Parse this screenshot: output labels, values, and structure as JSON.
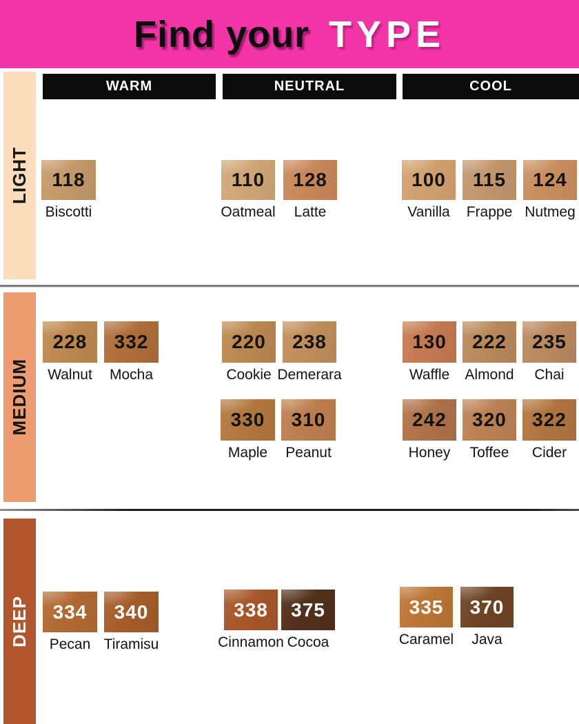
{
  "title": {
    "prefix": "Find your",
    "highlight": "TYPE"
  },
  "columns": [
    "WARM",
    "NEUTRAL",
    "COOL"
  ],
  "theme": {
    "header_bg": "#F335A8",
    "column_bar_bg": "#0B0B0B",
    "column_bar_text": "#FFFFFF",
    "divider_gray": "#7F7F7F",
    "divider_dark": "#1D1D1D"
  },
  "rows": [
    {
      "label": "LIGHT",
      "band_color": "#FBDCBD",
      "band_text_color": "#141414",
      "number_color": "#141414",
      "groups": [
        {
          "column": "warm",
          "sub": 1,
          "shades": [
            {
              "code": "118",
              "name": "Biscotti",
              "color": "#C49A6A"
            }
          ]
        },
        {
          "column": "neutral",
          "sub": 1,
          "shades": [
            {
              "code": "110",
              "name": "Oatmeal",
              "color": "#D0A877"
            },
            {
              "code": "128",
              "name": "Latte",
              "color": "#C8885A"
            }
          ]
        },
        {
          "column": "cool",
          "sub": 1,
          "shades": [
            {
              "code": "100",
              "name": "Vanilla",
              "color": "#D2A170"
            },
            {
              "code": "115",
              "name": "Frappe",
              "color": "#C3976F"
            },
            {
              "code": "124",
              "name": "Nutmeg",
              "color": "#C98F60"
            }
          ]
        }
      ]
    },
    {
      "label": "MEDIUM",
      "band_color": "#EC9C70",
      "band_text_color": "#141414",
      "number_color": "#141414",
      "groups": [
        {
          "column": "warm",
          "sub": 1,
          "shades": [
            {
              "code": "228",
              "name": "Walnut",
              "color": "#BE8951"
            },
            {
              "code": "332",
              "name": "Mocha",
              "color": "#B06E3B"
            }
          ]
        },
        {
          "column": "neutral",
          "sub": 1,
          "shades": [
            {
              "code": "220",
              "name": "Cookie",
              "color": "#BC8951"
            },
            {
              "code": "238",
              "name": "Demerara",
              "color": "#C08F5C"
            }
          ]
        },
        {
          "column": "cool",
          "sub": 1,
          "shades": [
            {
              "code": "130",
              "name": "Waffle",
              "color": "#C67A52"
            },
            {
              "code": "222",
              "name": "Almond",
              "color": "#B98A5C"
            },
            {
              "code": "235",
              "name": "Chai",
              "color": "#BB8A60"
            }
          ]
        },
        {
          "column": "neutral",
          "sub": 2,
          "shades": [
            {
              "code": "330",
              "name": "Maple",
              "color": "#B47840"
            },
            {
              "code": "310",
              "name": "Peanut",
              "color": "#BE7F4F"
            }
          ]
        },
        {
          "column": "cool",
          "sub": 2,
          "shades": [
            {
              "code": "242",
              "name": "Honey",
              "color": "#B0734A"
            },
            {
              "code": "320",
              "name": "Toffee",
              "color": "#BC8254"
            },
            {
              "code": "322",
              "name": "Cider",
              "color": "#B17641"
            }
          ]
        }
      ]
    },
    {
      "label": "DEEP",
      "band_color": "#B2572D",
      "band_text_color": "#FFFFFF",
      "number_color": "#FFFFFF",
      "groups": [
        {
          "column": "warm",
          "sub": 1,
          "shades": [
            {
              "code": "334",
              "name": "Pecan",
              "color": "#B26A33"
            },
            {
              "code": "340",
              "name": "Tiramisu",
              "color": "#A65D2A"
            }
          ]
        },
        {
          "column": "neutral",
          "sub": 1,
          "shades": [
            {
              "code": "338",
              "name": "Cinnamon",
              "color": "#A7572A"
            },
            {
              "code": "375",
              "name": "Cocoa",
              "color": "#52301B"
            }
          ]
        },
        {
          "column": "cool",
          "sub": 1,
          "shades": [
            {
              "code": "335",
              "name": "Caramel",
              "color": "#BD7636"
            },
            {
              "code": "370",
              "name": "Java",
              "color": "#6E4424"
            }
          ]
        }
      ]
    }
  ],
  "chart_data": {
    "type": "table",
    "title": "Find your TYPE",
    "row_groups": [
      "LIGHT",
      "MEDIUM",
      "DEEP"
    ],
    "column_groups": [
      "WARM",
      "NEUTRAL",
      "COOL"
    ],
    "entries": [
      {
        "depth": "LIGHT",
        "undertone": "WARM",
        "code": "118",
        "name": "Biscotti"
      },
      {
        "depth": "LIGHT",
        "undertone": "NEUTRAL",
        "code": "110",
        "name": "Oatmeal"
      },
      {
        "depth": "LIGHT",
        "undertone": "NEUTRAL",
        "code": "128",
        "name": "Latte"
      },
      {
        "depth": "LIGHT",
        "undertone": "COOL",
        "code": "100",
        "name": "Vanilla"
      },
      {
        "depth": "LIGHT",
        "undertone": "COOL",
        "code": "115",
        "name": "Frappe"
      },
      {
        "depth": "LIGHT",
        "undertone": "COOL",
        "code": "124",
        "name": "Nutmeg"
      },
      {
        "depth": "MEDIUM",
        "undertone": "WARM",
        "code": "228",
        "name": "Walnut"
      },
      {
        "depth": "MEDIUM",
        "undertone": "WARM",
        "code": "332",
        "name": "Mocha"
      },
      {
        "depth": "MEDIUM",
        "undertone": "NEUTRAL",
        "code": "220",
        "name": "Cookie"
      },
      {
        "depth": "MEDIUM",
        "undertone": "NEUTRAL",
        "code": "238",
        "name": "Demerara"
      },
      {
        "depth": "MEDIUM",
        "undertone": "NEUTRAL",
        "code": "330",
        "name": "Maple"
      },
      {
        "depth": "MEDIUM",
        "undertone": "NEUTRAL",
        "code": "310",
        "name": "Peanut"
      },
      {
        "depth": "MEDIUM",
        "undertone": "COOL",
        "code": "130",
        "name": "Waffle"
      },
      {
        "depth": "MEDIUM",
        "undertone": "COOL",
        "code": "222",
        "name": "Almond"
      },
      {
        "depth": "MEDIUM",
        "undertone": "COOL",
        "code": "235",
        "name": "Chai"
      },
      {
        "depth": "MEDIUM",
        "undertone": "COOL",
        "code": "242",
        "name": "Honey"
      },
      {
        "depth": "MEDIUM",
        "undertone": "COOL",
        "code": "320",
        "name": "Toffee"
      },
      {
        "depth": "MEDIUM",
        "undertone": "COOL",
        "code": "322",
        "name": "Cider"
      },
      {
        "depth": "DEEP",
        "undertone": "WARM",
        "code": "334",
        "name": "Pecan"
      },
      {
        "depth": "DEEP",
        "undertone": "WARM",
        "code": "340",
        "name": "Tiramisu"
      },
      {
        "depth": "DEEP",
        "undertone": "NEUTRAL",
        "code": "338",
        "name": "Cinnamon"
      },
      {
        "depth": "DEEP",
        "undertone": "NEUTRAL",
        "code": "375",
        "name": "Cocoa"
      },
      {
        "depth": "DEEP",
        "undertone": "COOL",
        "code": "335",
        "name": "Caramel"
      },
      {
        "depth": "DEEP",
        "undertone": "COOL",
        "code": "370",
        "name": "Java"
      }
    ]
  }
}
